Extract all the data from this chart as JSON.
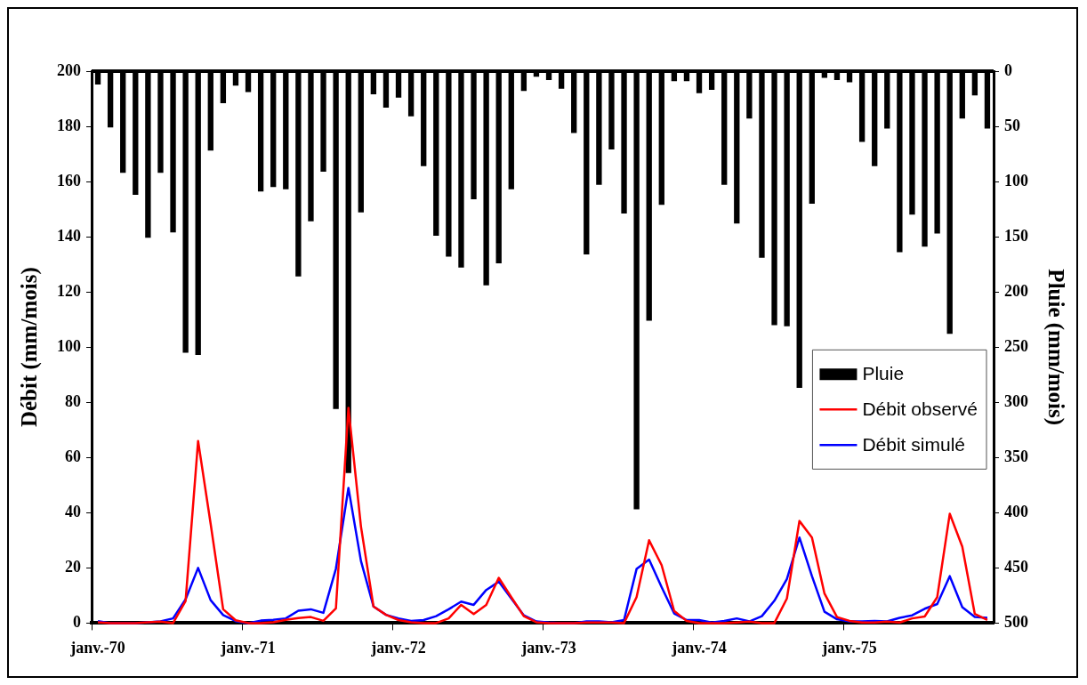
{
  "chart_data": {
    "type": "line",
    "xlabel": null,
    "ylabel": "Débit (mm/mois)",
    "y2label": "Pluie (mm/mois)",
    "categories": [
      "janv.-70",
      null,
      null,
      null,
      null,
      null,
      null,
      null,
      null,
      null,
      null,
      null,
      "janv.-71",
      null,
      null,
      null,
      null,
      null,
      null,
      null,
      null,
      null,
      null,
      null,
      "janv.-72",
      null,
      null,
      null,
      null,
      null,
      null,
      null,
      null,
      null,
      null,
      null,
      "janv.-73",
      null,
      null,
      null,
      null,
      null,
      null,
      null,
      null,
      null,
      null,
      null,
      "janv.-74",
      null,
      null,
      null,
      null,
      null,
      null,
      null,
      null,
      null,
      null,
      null,
      "janv.-75",
      null,
      null,
      null,
      null,
      null,
      null,
      null,
      null,
      null,
      null,
      null
    ],
    "series": [
      {
        "name": "Pluie",
        "type": "bar",
        "axis": "y2",
        "color": "#000000",
        "values": [
          12,
          51,
          92,
          112,
          151,
          92,
          146,
          255,
          257,
          72,
          29,
          13,
          19,
          109,
          105,
          107,
          186,
          136,
          91,
          306,
          364,
          128,
          21,
          33,
          24,
          41,
          86,
          149,
          168,
          178,
          116,
          194,
          174,
          107,
          18,
          5,
          8,
          16,
          56,
          166,
          103,
          71,
          129,
          397,
          226,
          121,
          9,
          9,
          20,
          17,
          103,
          138,
          43,
          169,
          230,
          231,
          287,
          120,
          6,
          8,
          10,
          64,
          86,
          52,
          164,
          130,
          159,
          147,
          238,
          43,
          22,
          52
        ]
      },
      {
        "name": "Débit observé",
        "axis": "y",
        "color": "#ff0000",
        "values": [
          0.3,
          0,
          0,
          0,
          0.3,
          0.5,
          0,
          8,
          66,
          36,
          5,
          1,
          0,
          0,
          0.3,
          1.2,
          1.8,
          2.2,
          0.8,
          5.3,
          78,
          35,
          6,
          3,
          1.1,
          0.3,
          0,
          0,
          1.7,
          6.6,
          3.3,
          6.6,
          16.4,
          9.4,
          2.5,
          0.3,
          0,
          0,
          0,
          0.2,
          0.2,
          0.2,
          0,
          9.4,
          30,
          21,
          4.4,
          0.8,
          0,
          0,
          0,
          0.2,
          0.5,
          0,
          0,
          8.9,
          37,
          31,
          10.7,
          2.2,
          0.8,
          0.2,
          0.2,
          0.5,
          0.2,
          1.7,
          2.4,
          9.4,
          39.6,
          27.7,
          3.3,
          1.1
        ]
      },
      {
        "name": "Débit simulé",
        "axis": "y",
        "color": "#0000ff",
        "values": [
          0.7,
          0,
          0,
          0,
          0.3,
          0.6,
          1.7,
          8.6,
          20,
          8.3,
          2.9,
          0.7,
          0,
          0.9,
          1.2,
          1.7,
          4.5,
          5,
          3.7,
          19.7,
          49,
          22.5,
          6,
          3,
          1.7,
          0.8,
          1.1,
          2.5,
          5,
          7.8,
          6.6,
          12,
          15,
          8.9,
          2.8,
          0.6,
          0.2,
          0,
          0,
          0.6,
          0.6,
          0.3,
          1.1,
          19.6,
          23,
          13,
          3.5,
          1.1,
          1.1,
          0.2,
          0.8,
          1.7,
          0.6,
          2.5,
          8.1,
          16,
          31,
          17,
          4.1,
          1.4,
          0.6,
          0.6,
          0.8,
          0.6,
          1.9,
          2.8,
          5.2,
          6.9,
          17,
          5.8,
          2.2,
          1.9
        ]
      }
    ],
    "ylim": [
      0,
      200
    ],
    "yticks": [
      0,
      20,
      40,
      60,
      80,
      100,
      120,
      140,
      160,
      180,
      200
    ],
    "y2lim": [
      500,
      0
    ],
    "y2ticks": [
      0,
      50,
      100,
      150,
      200,
      250,
      300,
      350,
      400,
      450,
      500
    ],
    "grid": false,
    "legend": "right",
    "marker": "none",
    "line_style": "solid"
  }
}
